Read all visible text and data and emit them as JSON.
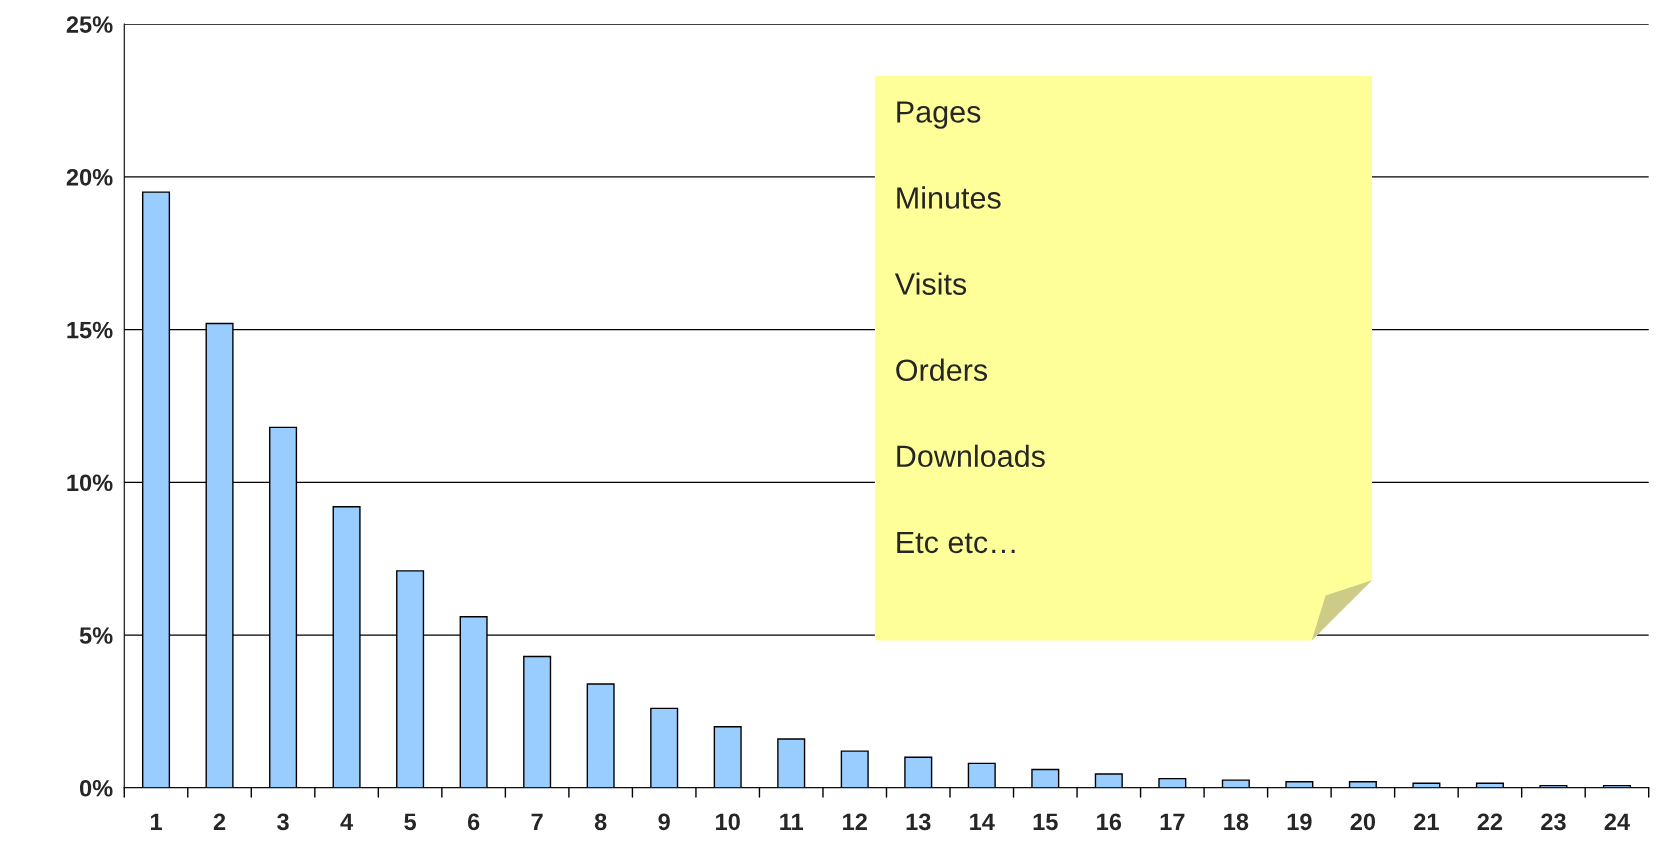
{
  "chart_data": {
    "type": "bar",
    "categories": [
      "1",
      "2",
      "3",
      "4",
      "5",
      "6",
      "7",
      "8",
      "9",
      "10",
      "11",
      "12",
      "13",
      "14",
      "15",
      "16",
      "17",
      "18",
      "19",
      "20",
      "21",
      "22",
      "23",
      "24"
    ],
    "values": [
      19.5,
      15.2,
      11.8,
      9.2,
      7.1,
      5.6,
      4.3,
      3.4,
      2.6,
      2.0,
      1.6,
      1.2,
      1.0,
      0.8,
      0.6,
      0.45,
      0.3,
      0.25,
      0.2,
      0.2,
      0.15,
      0.15,
      0.07,
      0.07
    ],
    "color": "#99ccff",
    "ylim": [
      0,
      25
    ],
    "yticks": [
      {
        "value": 0,
        "label": "0%"
      },
      {
        "value": 5,
        "label": "5%"
      },
      {
        "value": 10,
        "label": "10%"
      },
      {
        "value": 15,
        "label": "15%"
      },
      {
        "value": 20,
        "label": "20%"
      },
      {
        "value": 25,
        "label": "25%"
      }
    ],
    "grid": "y",
    "annotations": [
      "Pages",
      "Minutes",
      "Visits",
      "Orders",
      "Downloads",
      "Etc etc…"
    ]
  }
}
